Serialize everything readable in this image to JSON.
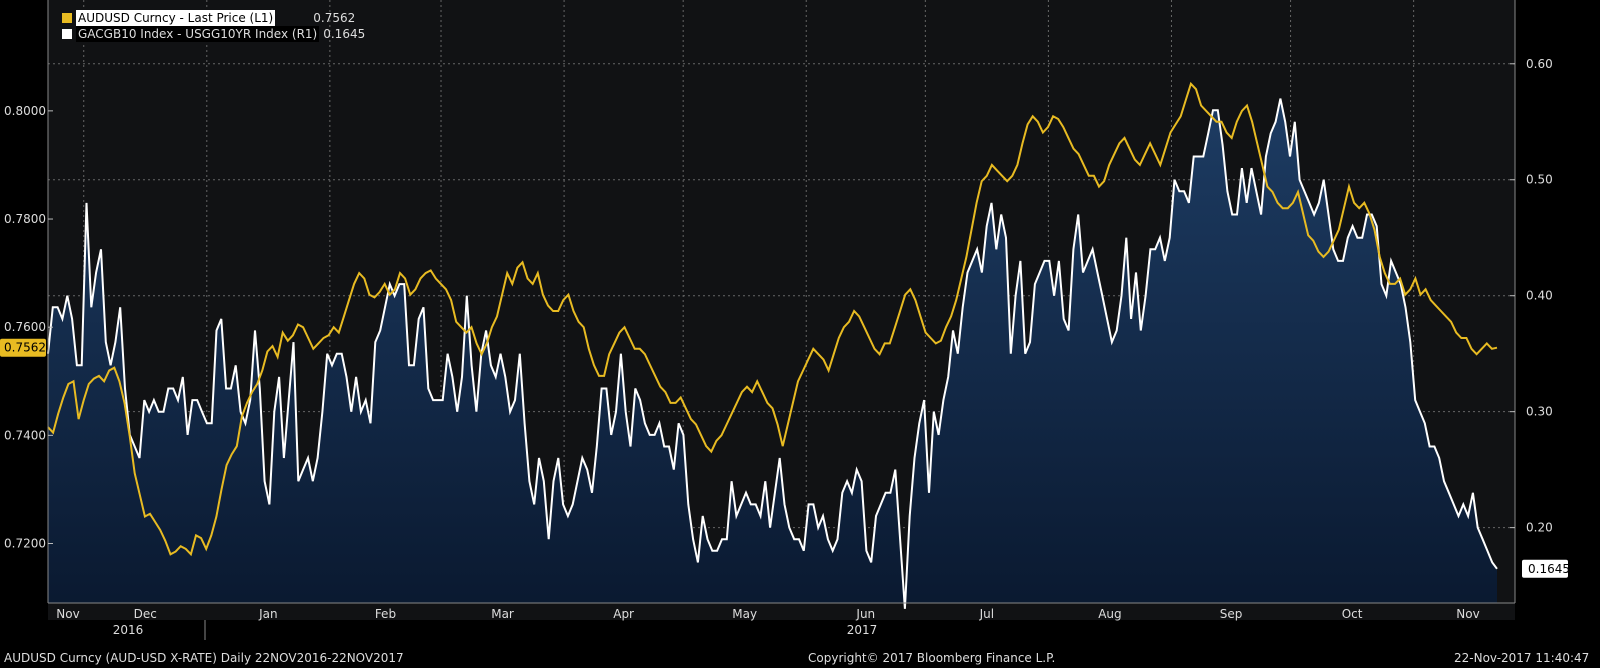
{
  "footer": {
    "left": "AUDUSD Curncy (AUD-USD X-RATE)  Daily 22NOV2016-22NOV2017",
    "center": "Copyright© 2017 Bloomberg Finance L.P.",
    "right": "22-Nov-2017 11:40:47"
  },
  "colors": {
    "background": "#000000",
    "plot_bg": "#111214",
    "area_fill_top": "#1d3c63",
    "area_fill_bottom": "#0a1930",
    "gold": "#e8bb22",
    "white": "#ffffff",
    "grid": "#666666"
  },
  "chart_data": {
    "type": "line",
    "x_axis": {
      "months": [
        "Nov",
        "Dec",
        "Jan",
        "Feb",
        "Mar",
        "Apr",
        "May",
        "Jun",
        "Jul",
        "Aug",
        "Sep",
        "Oct",
        "Nov"
      ],
      "years": [
        "2016",
        "2017"
      ],
      "range": [
        "2016-11-22",
        "2017-11-22"
      ]
    },
    "y_left": {
      "ticks": [
        "0.7200",
        "0.7400",
        "0.7600",
        "0.7800",
        "0.8000"
      ],
      "range": [
        0.709,
        0.8205
      ]
    },
    "y_right": {
      "ticks": [
        "0.20",
        "0.30",
        "0.40",
        "0.50",
        "0.60"
      ],
      "range": [
        0.135,
        0.655
      ]
    },
    "grid": true,
    "legend_position": "top-left",
    "series": [
      {
        "name": "AUDUSD Curncy - Last Price (L1)",
        "last_value": "0.7562",
        "axis": "left",
        "color": "#e8bb22",
        "values": [
          0.7415,
          0.7405,
          0.744,
          0.747,
          0.7495,
          0.75,
          0.743,
          0.7465,
          0.7495,
          0.7505,
          0.751,
          0.75,
          0.752,
          0.7525,
          0.75,
          0.746,
          0.74,
          0.733,
          0.729,
          0.725,
          0.7255,
          0.724,
          0.7225,
          0.7205,
          0.718,
          0.7185,
          0.7195,
          0.719,
          0.718,
          0.7215,
          0.721,
          0.719,
          0.7215,
          0.725,
          0.73,
          0.7345,
          0.7365,
          0.738,
          0.7435,
          0.746,
          0.748,
          0.7495,
          0.752,
          0.7555,
          0.7565,
          0.7545,
          0.759,
          0.7575,
          0.7585,
          0.7605,
          0.76,
          0.758,
          0.756,
          0.757,
          0.758,
          0.7585,
          0.76,
          0.759,
          0.762,
          0.765,
          0.768,
          0.77,
          0.769,
          0.766,
          0.7655,
          0.7665,
          0.768,
          0.766,
          0.767,
          0.77,
          0.769,
          0.766,
          0.767,
          0.769,
          0.77,
          0.7705,
          0.769,
          0.768,
          0.767,
          0.765,
          0.761,
          0.76,
          0.759,
          0.76,
          0.757,
          0.755,
          0.757,
          0.76,
          0.762,
          0.766,
          0.77,
          0.768,
          0.771,
          0.772,
          0.769,
          0.768,
          0.77,
          0.766,
          0.764,
          0.763,
          0.763,
          0.765,
          0.766,
          0.763,
          0.761,
          0.76,
          0.756,
          0.753,
          0.751,
          0.751,
          0.755,
          0.757,
          0.759,
          0.76,
          0.758,
          0.756,
          0.756,
          0.755,
          0.753,
          0.751,
          0.749,
          0.748,
          0.746,
          0.746,
          0.747,
          0.745,
          0.743,
          0.742,
          0.74,
          0.738,
          0.737,
          0.739,
          0.74,
          0.742,
          0.744,
          0.746,
          0.748,
          0.749,
          0.748,
          0.75,
          0.748,
          0.746,
          0.745,
          0.742,
          0.738,
          0.742,
          0.746,
          0.75,
          0.752,
          0.754,
          0.756,
          0.755,
          0.754,
          0.752,
          0.755,
          0.758,
          0.76,
          0.761,
          0.763,
          0.762,
          0.76,
          0.758,
          0.756,
          0.755,
          0.757,
          0.757,
          0.76,
          0.763,
          0.766,
          0.767,
          0.765,
          0.762,
          0.759,
          0.758,
          0.757,
          0.7575,
          0.76,
          0.762,
          0.765,
          0.769,
          0.773,
          0.778,
          0.783,
          0.787,
          0.788,
          0.79,
          0.789,
          0.788,
          0.787,
          0.788,
          0.79,
          0.794,
          0.7975,
          0.799,
          0.798,
          0.796,
          0.797,
          0.799,
          0.7985,
          0.797,
          0.795,
          0.793,
          0.792,
          0.79,
          0.788,
          0.788,
          0.786,
          0.787,
          0.79,
          0.792,
          0.794,
          0.795,
          0.793,
          0.791,
          0.79,
          0.792,
          0.794,
          0.792,
          0.79,
          0.793,
          0.796,
          0.7975,
          0.799,
          0.802,
          0.805,
          0.804,
          0.801,
          0.8,
          0.799,
          0.798,
          0.798,
          0.796,
          0.795,
          0.798,
          0.8,
          0.801,
          0.798,
          0.794,
          0.79,
          0.786,
          0.785,
          0.783,
          0.782,
          0.782,
          0.783,
          0.785,
          0.781,
          0.777,
          0.776,
          0.774,
          0.773,
          0.774,
          0.776,
          0.778,
          0.782,
          0.786,
          0.783,
          0.782,
          0.783,
          0.781,
          0.778,
          0.773,
          0.77,
          0.768,
          0.768,
          0.769,
          0.766,
          0.767,
          0.769,
          0.766,
          0.767,
          0.765,
          0.764,
          0.763,
          0.762,
          0.761,
          0.759,
          0.758,
          0.758,
          0.756,
          0.755,
          0.756,
          0.757,
          0.756,
          0.7562
        ]
      },
      {
        "name": "GACGB10 Index - USGG10YR Index (R1)",
        "last_value": "0.1645",
        "axis": "right",
        "color": "#ffffff",
        "values": [
          0.35,
          0.39,
          0.39,
          0.38,
          0.4,
          0.38,
          0.34,
          0.34,
          0.48,
          0.39,
          0.42,
          0.44,
          0.36,
          0.34,
          0.36,
          0.39,
          0.32,
          0.28,
          0.27,
          0.26,
          0.31,
          0.3,
          0.31,
          0.3,
          0.3,
          0.32,
          0.32,
          0.31,
          0.33,
          0.28,
          0.31,
          0.31,
          0.3,
          0.29,
          0.29,
          0.37,
          0.38,
          0.32,
          0.32,
          0.34,
          0.3,
          0.29,
          0.31,
          0.37,
          0.32,
          0.24,
          0.22,
          0.3,
          0.33,
          0.26,
          0.31,
          0.36,
          0.24,
          0.25,
          0.26,
          0.24,
          0.26,
          0.3,
          0.35,
          0.34,
          0.35,
          0.35,
          0.33,
          0.3,
          0.33,
          0.3,
          0.31,
          0.29,
          0.36,
          0.37,
          0.39,
          0.41,
          0.4,
          0.41,
          0.41,
          0.34,
          0.34,
          0.38,
          0.39,
          0.32,
          0.31,
          0.31,
          0.31,
          0.35,
          0.33,
          0.3,
          0.33,
          0.4,
          0.34,
          0.3,
          0.35,
          0.37,
          0.34,
          0.33,
          0.35,
          0.33,
          0.3,
          0.31,
          0.35,
          0.29,
          0.24,
          0.22,
          0.26,
          0.24,
          0.19,
          0.24,
          0.26,
          0.22,
          0.21,
          0.22,
          0.24,
          0.26,
          0.25,
          0.23,
          0.27,
          0.32,
          0.32,
          0.28,
          0.3,
          0.35,
          0.3,
          0.27,
          0.32,
          0.31,
          0.29,
          0.28,
          0.28,
          0.29,
          0.27,
          0.27,
          0.25,
          0.29,
          0.28,
          0.22,
          0.19,
          0.17,
          0.21,
          0.19,
          0.18,
          0.18,
          0.19,
          0.19,
          0.24,
          0.21,
          0.22,
          0.23,
          0.22,
          0.22,
          0.21,
          0.24,
          0.2,
          0.23,
          0.26,
          0.22,
          0.2,
          0.19,
          0.19,
          0.18,
          0.22,
          0.22,
          0.2,
          0.21,
          0.19,
          0.18,
          0.19,
          0.23,
          0.24,
          0.23,
          0.25,
          0.24,
          0.18,
          0.17,
          0.21,
          0.22,
          0.23,
          0.23,
          0.25,
          0.19,
          0.13,
          0.21,
          0.26,
          0.29,
          0.31,
          0.23,
          0.3,
          0.28,
          0.31,
          0.33,
          0.37,
          0.35,
          0.39,
          0.42,
          0.43,
          0.44,
          0.42,
          0.46,
          0.48,
          0.44,
          0.47,
          0.45,
          0.35,
          0.4,
          0.43,
          0.35,
          0.36,
          0.41,
          0.42,
          0.43,
          0.43,
          0.4,
          0.43,
          0.38,
          0.37,
          0.44,
          0.47,
          0.42,
          0.43,
          0.44,
          0.42,
          0.4,
          0.38,
          0.36,
          0.37,
          0.4,
          0.45,
          0.38,
          0.42,
          0.37,
          0.4,
          0.44,
          0.44,
          0.45,
          0.43,
          0.45,
          0.5,
          0.49,
          0.49,
          0.48,
          0.52,
          0.52,
          0.52,
          0.54,
          0.56,
          0.56,
          0.53,
          0.49,
          0.47,
          0.47,
          0.51,
          0.48,
          0.51,
          0.49,
          0.47,
          0.52,
          0.54,
          0.55,
          0.57,
          0.55,
          0.52,
          0.55,
          0.5,
          0.49,
          0.48,
          0.47,
          0.48,
          0.5,
          0.47,
          0.44,
          0.43,
          0.43,
          0.45,
          0.46,
          0.45,
          0.45,
          0.47,
          0.47,
          0.46,
          0.41,
          0.4,
          0.43,
          0.42,
          0.41,
          0.39,
          0.36,
          0.31,
          0.3,
          0.29,
          0.27,
          0.27,
          0.26,
          0.24,
          0.23,
          0.22,
          0.21,
          0.22,
          0.21,
          0.23,
          0.2,
          0.19,
          0.18,
          0.17,
          0.1645
        ]
      }
    ]
  }
}
